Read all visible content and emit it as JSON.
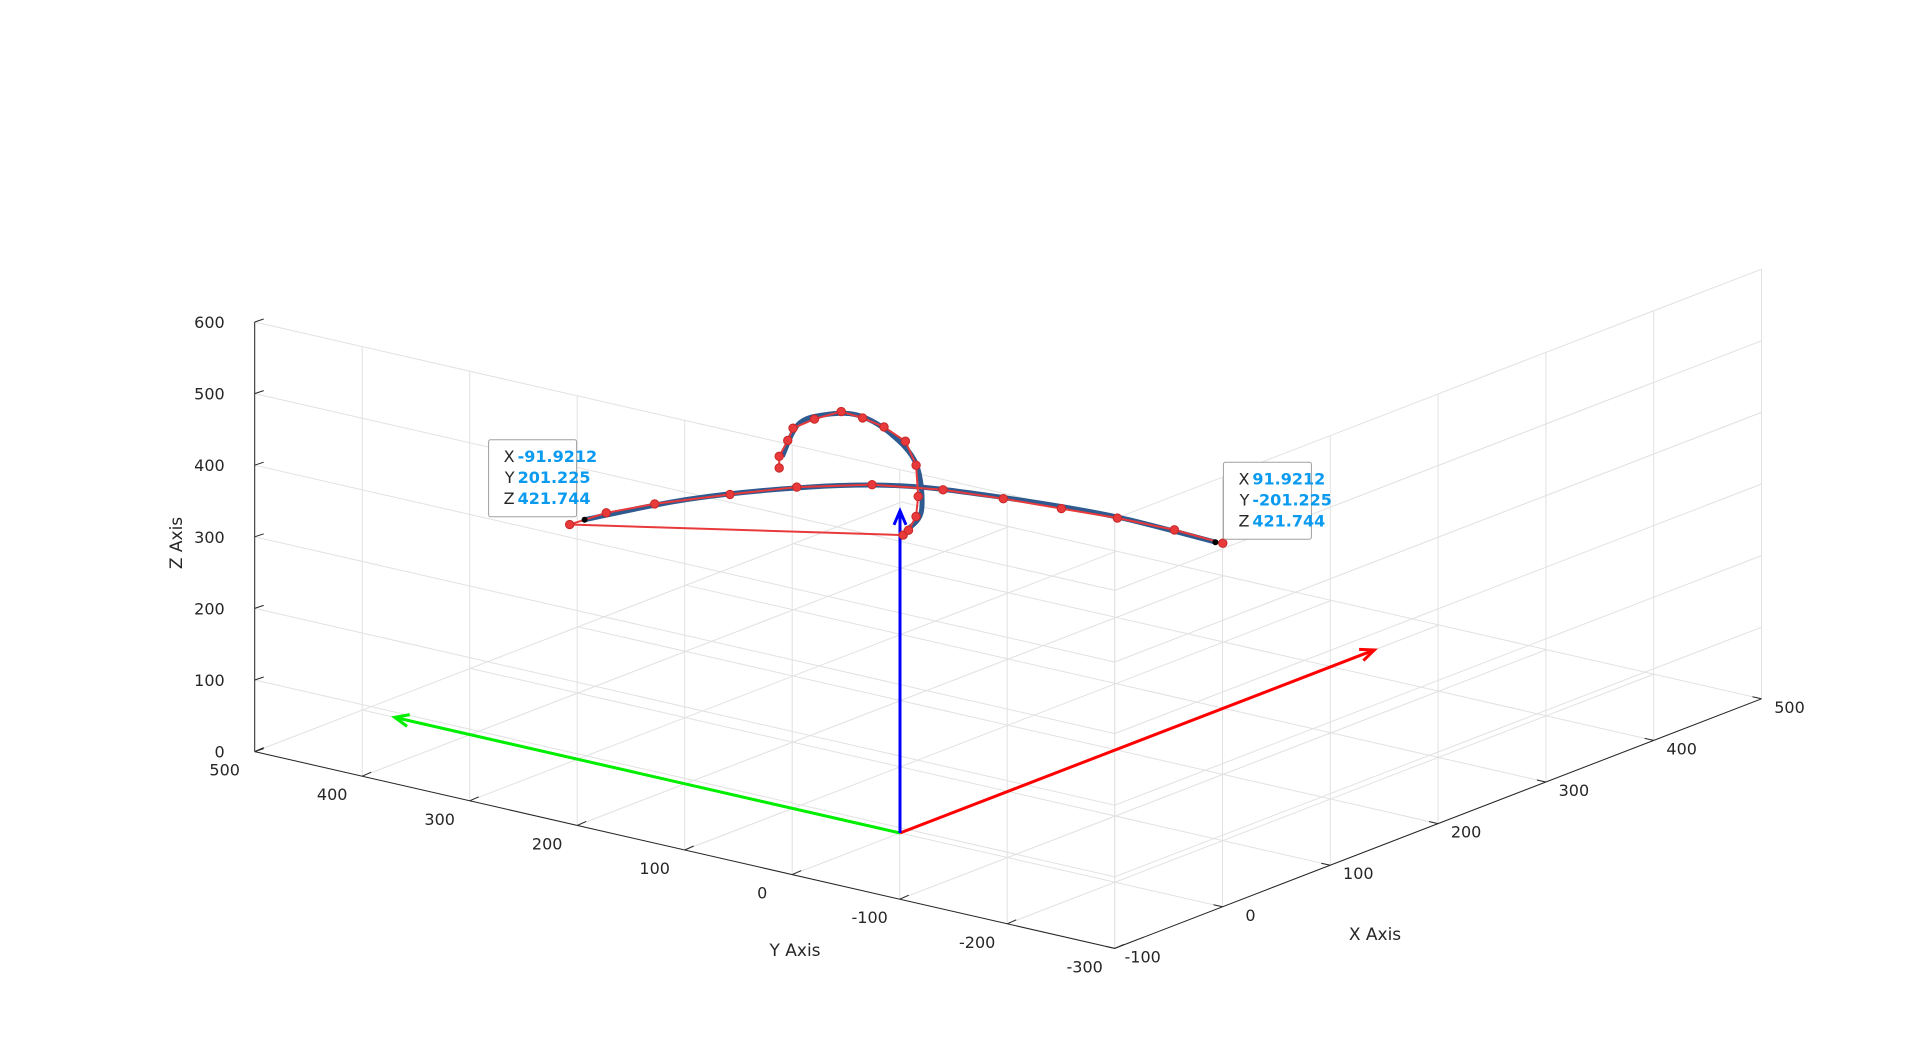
{
  "chart_data": {
    "type": "line",
    "view": "3d",
    "axes": {
      "x": {
        "label": "X Axis",
        "range": [
          -100,
          500
        ],
        "ticks": [
          -100,
          0,
          100,
          200,
          300,
          400,
          500
        ]
      },
      "y": {
        "label": "Y Axis",
        "range": [
          -300,
          500
        ],
        "ticks": [
          -300,
          -200,
          -100,
          0,
          100,
          200,
          300,
          400,
          500
        ]
      },
      "z": {
        "label": "Z Axis",
        "range": [
          0,
          600
        ],
        "ticks": [
          0,
          100,
          200,
          300,
          400,
          500,
          600
        ]
      }
    },
    "grid": true,
    "colors": {
      "x_arrow": "#ff0000",
      "y_arrow": "#00ee00",
      "z_arrow": "#0000ff",
      "path": "#2f5a8f",
      "markers": "#e8393b"
    },
    "arrows": [
      {
        "name": "x",
        "from": [
          0,
          0,
          0
        ],
        "to": [
          440,
          0,
          0
        ]
      },
      {
        "name": "y",
        "from": [
          0,
          0,
          0
        ],
        "to": [
          0,
          470,
          0
        ]
      },
      {
        "name": "z",
        "from": [
          0,
          0,
          0
        ],
        "to": [
          0,
          0,
          450
        ]
      }
    ],
    "series": [
      {
        "kind": "path",
        "width": 5,
        "color": "#2f5a8f",
        "points": [
          [
            92,
            -201,
            422
          ],
          [
            60,
            -135,
            455
          ],
          [
            25,
            -60,
            477
          ],
          [
            0,
            0,
            485
          ],
          [
            -25,
            60,
            477
          ],
          [
            -60,
            135,
            455
          ],
          [
            -92,
            201,
            422
          ]
        ]
      },
      {
        "kind": "path",
        "width": 5,
        "color": "#2f5a8f",
        "points": [
          [
            -15,
            -20,
            437
          ],
          [
            -30,
            -50,
            484
          ],
          [
            -10,
            -25,
            530
          ],
          [
            30,
            40,
            528
          ],
          [
            80,
            120,
            496
          ],
          [
            130,
            200,
            440
          ],
          [
            180,
            275,
            372
          ],
          [
            220,
            330,
            285
          ]
        ]
      },
      {
        "kind": "markers",
        "color": "#e8393b",
        "points": [
          [
            95,
            -205,
            420
          ],
          [
            80,
            -175,
            437
          ],
          [
            62,
            -140,
            452
          ],
          [
            45,
            -105,
            463
          ],
          [
            28,
            -68,
            474
          ],
          [
            12,
            -28,
            482
          ],
          [
            -8,
            18,
            485
          ],
          [
            -28,
            68,
            476
          ],
          [
            -48,
            110,
            463
          ],
          [
            -70,
            158,
            446
          ],
          [
            -85,
            188,
            432
          ],
          [
            -97,
            210,
            415
          ],
          [
            -15,
            -18,
            431
          ],
          [
            -22,
            -30,
            446
          ],
          [
            -30,
            -45,
            475
          ],
          [
            -26,
            -43,
            500
          ],
          [
            -10,
            -25,
            528
          ],
          [
            15,
            10,
            535
          ],
          [
            40,
            55,
            525
          ],
          [
            70,
            105,
            503
          ],
          [
            110,
            165,
            468
          ],
          [
            150,
            230,
            412
          ],
          [
            185,
            285,
            360
          ],
          [
            210,
            315,
            318
          ],
          [
            222,
            335,
            282
          ],
          [
            225,
            338,
            263
          ]
        ]
      }
    ],
    "datatips": [
      {
        "X": "-91.9212",
        "Y": "201.225",
        "Z": "421.744"
      },
      {
        "X": "91.9212",
        "Y": "-201.225",
        "Z": "421.744"
      }
    ]
  }
}
